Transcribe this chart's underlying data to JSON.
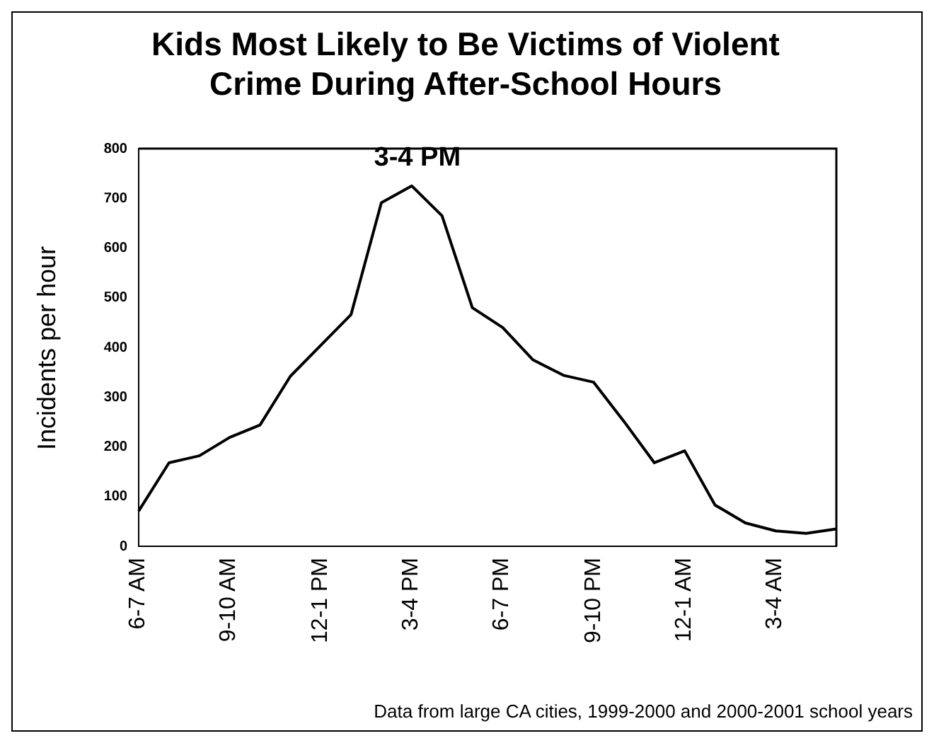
{
  "chart_data": {
    "type": "line",
    "title": [
      "Kids Most Likely to Be Victims of Violent",
      "Crime During After-School Hours"
    ],
    "ylabel": "Incidents per hour",
    "categories": [
      "6-7 AM",
      null,
      null,
      "9-10 AM",
      null,
      null,
      "12-1 PM",
      null,
      null,
      "3-4 PM",
      null,
      null,
      "6-7 PM",
      null,
      null,
      "9-10 PM",
      null,
      null,
      "12-1 AM",
      null,
      null,
      "3-4 AM",
      null,
      null
    ],
    "values": [
      71,
      168,
      182,
      219,
      244,
      342,
      404,
      466,
      691,
      725,
      665,
      480,
      440,
      375,
      344,
      330,
      251,
      168,
      192,
      83,
      47,
      31,
      26,
      35
    ],
    "color": "#000000",
    "ylim": [
      0,
      800
    ],
    "yticks": [
      0,
      100,
      200,
      300,
      400,
      500,
      600,
      700,
      800
    ],
    "annotations": [
      {
        "text": "3-4 PM",
        "x": "3-4 PM",
        "y": 725
      },
      "Data from large CA cities, 1999-2000 and 2000-2001 school years"
    ],
    "grid": false,
    "legend": false,
    "marker": "none",
    "line_style": "solid"
  }
}
